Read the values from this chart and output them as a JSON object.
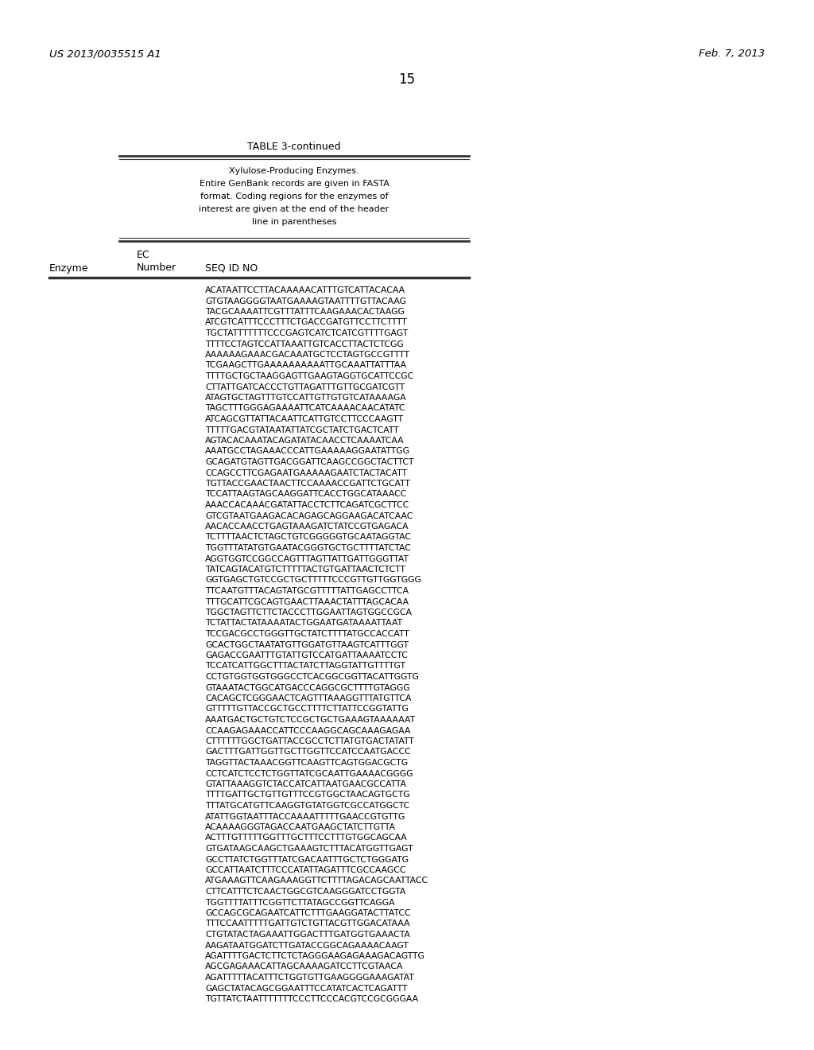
{
  "header_left": "US 2013/0035515 A1",
  "header_right": "Feb. 7, 2013",
  "page_number": "15",
  "table_title": "TABLE 3-continued",
  "table_description": [
    "Xylulose-Producing Enzymes.",
    "Entire GenBank records are given in FASTA",
    "format. Coding regions for the enzymes of",
    "interest are given at the end of the header",
    "line in parentheses"
  ],
  "col1_header": "Enzyme",
  "col2_header1": "EC",
  "col2_header2": "Number",
  "col3_header": "SEQ ID NO",
  "sequence_lines": [
    "ACATAATTCCTTACAAAAACATTTGTCATTACACAA",
    "GTGTAAGGGGTAATGAAAAGTAATTTTGTTACAAG",
    "TACGCAAAATTCGTTTATTTCAAGAAACACTAAGG",
    "ATCGTCATTTCCCTTTCTGACCGATGTTCCTTCTTTT",
    "TGCTATTTTTTTCCCGAGTCATCTCATCGTTTTGAGT",
    "TTTTCCTAGTCCATTAAATTGTCACCTTACTCTCGG",
    "AAAAAAGAAACGACAAATGCTCCTAGTGCCGTTTT",
    "TCGAAGCTTGAAAAAAAAAATTGCAAATTATTTAA",
    "TTTTGCTGCTAAGGAGTTGAAGTAGGTGCATTCCGC",
    "CTTATTGATCACCCTGTTAGATTTGTTGCGATCGTT",
    "ATAGTGCTAGTTTGTCCATTGTTGTGTCATAAAAGA",
    "TAGCTTTGGGAGAAAATTCATCAAAACAACATATC",
    "ATCAGCGTTATTACAATTCATTGTCCTTCCCAAGTT",
    "TTTTTGACGTATAATATTATCGCTATCTGACTCATT",
    "AGTACACAAATACAGATATACAACCTCAAAATCAA",
    "AAATGCCTAGAAACCCATTGAAAAAGGAATATTGG",
    "GCAGATGTAGTTGACGGATTCAAGCCGGCTACTTCT",
    "CCAGCCTTCGAGAATGAAAAAGAATCTACTACATT",
    "TGTTACCGAACTAACTTCCAAAACCGATTCTGCATT",
    "TCCATTAAGTAGCAAGGATTCACCTGGCATAAACC",
    "AAACCACAAACGATATTACCTCTTCAGATCGCTTCC",
    "GTCGTAATGAAGACACAGAGCAGGAAGACATCAAC",
    "AACACCAACCTGAGTAAAGATCTATCCGTGAGACA",
    "TCTTTTAACTCTAGCTGTCGGGGGTGCAATAGGTAC",
    "TGGTTTATATGTGAATACGGGTGCTGCTTTTATCTAC",
    "AGGTGGTCCGGCCAGTTTAGTTATTGATTGGGTTAT",
    "TATCAGTACATGTCTTTTTACTGTGATTAACTCTCTT",
    "GGTGAGCTGTCCGCTGCTTTTTCCCGTTGTTGGTGGG",
    "TTCAATGTTTACAGTATGCGTTTTTATTGAGCCTTCA",
    "TTTGCATTCGCAGTGAACTTAAACTATTTAGCACAA",
    "TGGCTAGTTCTTCTACCCTTGGAATTAGTGGCCGCA",
    "TCTATTACTATAAAATACTGGAATGATAAAATTAAT",
    "TCCGACGCCTGGGTTGCTATCTTTTATGCCACCATT",
    "GCACTGGCTAATATGTTGGATGTTAAGTCATTTGGT",
    "GAGACCGAATTTGTATTGTCCATGATTAAAATCCTC",
    "TCCATCATTGGCTTTACTATCTTAGGTATTGTTTTGT",
    "CCTGTGGTGGTGGGCCTCACGGCGGTTACATTGGTG",
    "GTAAATACTGGCATGACCCAGGCGCTTTTGTAGGG",
    "CACAGCTCGGGAACTCAGTTTAAAGGTTTATGTTCA",
    "GTTTTTGTTACCGCTGCCTTTTCTTATTCCGGTATTG",
    "AAATGACTGCTGTCTCCGCTGCTGAAAGTAAAAAAT",
    "CCAAGAGAAACCATTCCCAAGGCAGCAAAGAGAA",
    "CTTTTTTGGCTGATTACCGCCTCTTATGTGACTATATT",
    "GACTTTGATTGGTTGCTTGGTTCCATCCAATGACCC",
    "TAGGTTACTAAACGGTTCAAGTTCAGTGGACGCTG",
    "CCTCATCTCCTCTGGTTATCGCAATTGAAAACGGGG",
    "GTATTAAAGGTCTACCATCATTAATGAACGCCATTA",
    "TTTTGATTGCTGTTGTTTCCGTGGCTAACAGTGCTG",
    "TTTATGCATGTTCAAGGTGTATGGTCGCCATGGCTC",
    "ATATTGGTAATTTACCAAAATTTTTGAACCGTGTTG",
    "ACAAAAGGGTAGACCAATGAAGCTATCTTGTTA",
    "ACTTTGTTTTTGGTTTGCTTTCCTTTGTGGCAGCAA",
    "GTGATAAGCAAGCTGAAAGTCTTTACATGGTTGAGT",
    "GCCTTATCTGGTTTATCGACAATTTGCTCTGGGATG",
    "GCCATTAATCTTTCCCATATTAGATTTCGCCAAGCC",
    "ATGAAAGTTCAAGAAAGGTTCTTTTAGACAGCAATTACC",
    "CTTCATTTCTCAACTGGCGTCAAGGGATCCTGGTA",
    "TGGTTTTATTTCGGTTCTTATAGCCGGTTCAGGA",
    "GCCAGCGCAGAATCATTCTTTGAAGGATACTTATCC",
    "TTTCCAATTTTTGATTGTCTGTTACGTTGGACATAAA",
    "CTGTATACTAGAAATTGGACTTTGATGGTGAAACTA",
    "AAGATAATGGATCTTGATACCGGCAGAAAACAAGT",
    "AGATTTTGACTCTTCTCTAGGGAAGAGAAAGACAGTTG",
    "AGCGAGAAACATTAGCAAAAGATCCTTCGTAACA",
    "AGATTTTTACATTTCTGGTGTTGAAGGGGAAAGATAT",
    "GAGCTATACAGCGGAATTTCCATATCACTCAGATTT",
    "TGTTATCTAATTTTTTTCCCTTCCCACGTCCGCGGGAA"
  ],
  "bg_color": "#ffffff",
  "text_color": "#000000",
  "line_color": "#333333"
}
